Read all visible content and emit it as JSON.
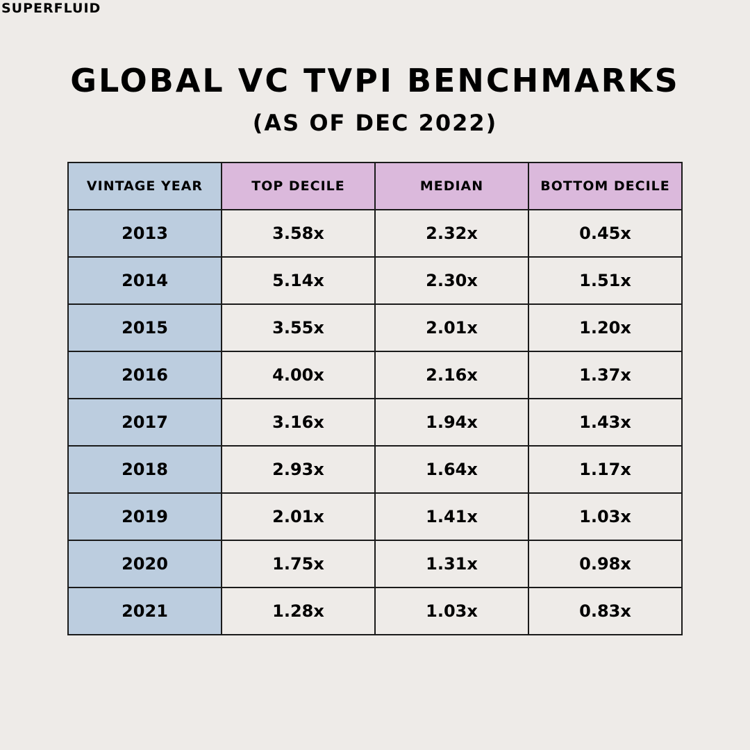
{
  "brand": "SUPERFLUID",
  "title": "GLOBAL VC TVPI BENCHMARKS",
  "subtitle": "(AS OF DEC 2022)",
  "colors": {
    "background": "#eeebe8",
    "year_column": "#bccddf",
    "header_metric": "#dbb9dc",
    "grid_lines": "#1a1a1a"
  },
  "chart_data": {
    "type": "table",
    "title": "GLOBAL VC TVPI BENCHMARKS",
    "subtitle": "(AS OF DEC 2022)",
    "columns": [
      "VINTAGE YEAR",
      "TOP DECILE",
      "MEDIAN",
      "BOTTOM DECILE"
    ],
    "rows": [
      [
        "2013",
        "3.58x",
        "2.32x",
        "0.45x"
      ],
      [
        "2014",
        "5.14x",
        "2.30x",
        "1.51x"
      ],
      [
        "2015",
        "3.55x",
        "2.01x",
        "1.20x"
      ],
      [
        "2016",
        "4.00x",
        "2.16x",
        "1.37x"
      ],
      [
        "2017",
        "3.16x",
        "1.94x",
        "1.43x"
      ],
      [
        "2018",
        "2.93x",
        "1.64x",
        "1.17x"
      ],
      [
        "2019",
        "2.01x",
        "1.41x",
        "1.03x"
      ],
      [
        "2020",
        "1.75x",
        "1.31x",
        "0.98x"
      ],
      [
        "2021",
        "1.28x",
        "1.03x",
        "0.83x"
      ]
    ]
  }
}
